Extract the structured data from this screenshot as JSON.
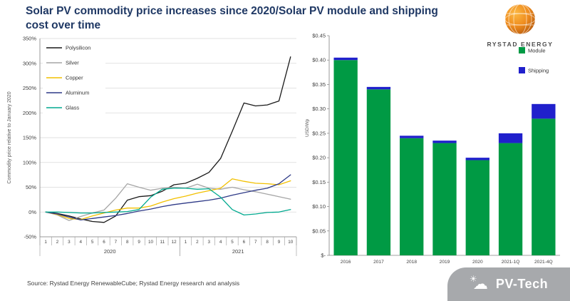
{
  "title": "Solar PV commodity price increases since 2020/Solar PV module and shipping cost over time",
  "branding": {
    "rystad": "RYSTAD ENERGY",
    "pvtech": "PV-Tech"
  },
  "source": "Source:  Rystad Energy RenewableCube; Rystad Energy research and analysis",
  "chart_data": [
    {
      "type": "line",
      "ylabel": "Commodity price relative to January 2020",
      "ylim": [
        -50,
        350
      ],
      "ytick_step": 50,
      "grid": true,
      "legend_position": "top-left",
      "x_tick_labels": [
        "1",
        "2",
        "3",
        "4",
        "5",
        "6",
        "7",
        "8",
        "9",
        "10",
        "11",
        "12",
        "1",
        "2",
        "3",
        "4",
        "5",
        "6",
        "7",
        "8",
        "9",
        "10"
      ],
      "x_groups": [
        {
          "label": "2020",
          "count": 12
        },
        {
          "label": "2021",
          "count": 10
        }
      ],
      "series": [
        {
          "name": "Polysilicon",
          "color": "#1a1a1a",
          "values": [
            0,
            -3,
            -8,
            -14,
            -19,
            -21,
            -8,
            24,
            31,
            33,
            42,
            55,
            58,
            68,
            80,
            108,
            163,
            220,
            214,
            216,
            224,
            313
          ]
        },
        {
          "name": "Silver",
          "color": "#a6a6a6",
          "values": [
            0,
            -6,
            -17,
            -9,
            -2,
            4,
            28,
            57,
            50,
            44,
            48,
            50,
            48,
            56,
            48,
            46,
            50,
            45,
            41,
            36,
            31,
            26
          ]
        },
        {
          "name": "Copper",
          "color": "#f2c000",
          "values": [
            0,
            -5,
            -13,
            -15,
            -8,
            -2,
            4,
            8,
            8,
            12,
            20,
            27,
            32,
            38,
            43,
            48,
            67,
            62,
            58,
            57,
            55,
            63
          ]
        },
        {
          "name": "Aluminum",
          "color": "#2e3a87",
          "values": [
            0,
            -4,
            -10,
            -16,
            -13,
            -10,
            -7,
            -3,
            2,
            6,
            11,
            15,
            18,
            21,
            24,
            28,
            34,
            39,
            44,
            48,
            57,
            75
          ]
        },
        {
          "name": "Glass",
          "color": "#00a98f",
          "values": [
            0,
            0,
            -1,
            -2,
            -2,
            -1,
            0,
            1,
            5,
            30,
            46,
            48,
            48,
            46,
            47,
            30,
            5,
            -6,
            -4,
            -1,
            0,
            5
          ]
        }
      ]
    },
    {
      "type": "bar",
      "stacked": true,
      "ylabel": "USD/Wp",
      "ylim": [
        0,
        0.45
      ],
      "ytick_step": 0.05,
      "grid": false,
      "legend_position": "top-right",
      "categories": [
        "2016",
        "2017",
        "2018",
        "2019",
        "2020",
        "2021-1Q",
        "2021-4Q"
      ],
      "series": [
        {
          "name": "Module",
          "color": "#009a44",
          "values": [
            0.4,
            0.34,
            0.24,
            0.23,
            0.195,
            0.23,
            0.28
          ]
        },
        {
          "name": "Shipping",
          "color": "#2020cc",
          "values": [
            0.005,
            0.005,
            0.005,
            0.005,
            0.005,
            0.02,
            0.03
          ]
        }
      ]
    }
  ]
}
